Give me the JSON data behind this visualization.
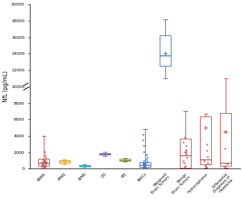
{
  "boxes": [
    {
      "name": "RRMS",
      "color": "#c0504d",
      "whisker_low": 50,
      "q1": 380,
      "median": 750,
      "q3": 1250,
      "whisker_high": 4000,
      "mean": 900,
      "scatter": [
        120,
        180,
        220,
        280,
        320,
        380,
        420,
        480,
        530,
        580,
        640,
        700,
        760,
        820,
        880,
        950,
        1050,
        1150,
        1350,
        1600,
        2100
      ]
    },
    {
      "name": "PPMS",
      "color": "#e6a118",
      "whisker_low": 550,
      "q1": 750,
      "median": 900,
      "q3": 1050,
      "whisker_high": 1150,
      "mean": 880,
      "scatter": []
    },
    {
      "name": "SPMS",
      "color": "#31b2c4",
      "whisker_low": 200,
      "q1": 280,
      "median": 380,
      "q3": 440,
      "whisker_high": 520,
      "mean": 370,
      "scatter": []
    },
    {
      "name": "CIS",
      "color": "#8064a2",
      "whisker_low": 1550,
      "q1": 1680,
      "median": 1800,
      "q3": 1920,
      "whisker_high": 2050,
      "mean": 1800,
      "scatter": []
    },
    {
      "name": "RIS",
      "color": "#77933c",
      "whisker_low": 850,
      "q1": 980,
      "median": 1080,
      "q3": 1180,
      "whisker_high": 1280,
      "mean": 1080,
      "scatter": []
    },
    {
      "name": "INDCs",
      "color": "#4472c4",
      "whisker_low": 50,
      "q1": 200,
      "median": 450,
      "q3": 800,
      "whisker_high": 4800,
      "mean": 600,
      "scatter": [
        80,
        130,
        180,
        250,
        320,
        400,
        480,
        560,
        640,
        720,
        850,
        980,
        1100,
        1350,
        1700,
        2100,
        2800,
        3500,
        4200
      ]
    },
    {
      "name": "Malignant\nBrain Tumors",
      "color": "#4472c4",
      "whisker_low": 11000,
      "q1": 12500,
      "median": 13800,
      "q3": 16200,
      "whisker_high": 18200,
      "mean": 14000,
      "scatter": []
    },
    {
      "name": "Benign\nBrain Tumors",
      "color": "#c0504d",
      "whisker_low": 80,
      "q1": 150,
      "median": 1600,
      "q3": 3700,
      "whisker_high": 7000,
      "mean": 2100,
      "scatter": [
        200,
        400,
        700,
        1000,
        1400,
        1800,
        2300,
        2800,
        3200,
        3800
      ]
    },
    {
      "name": "Hydrocephalus",
      "color": "#c0504d",
      "whisker_low": 80,
      "q1": 500,
      "median": 1100,
      "q3": 6400,
      "whisker_high": 6700,
      "mean": 5000,
      "scatter": [
        200,
        400,
        700,
        1000,
        1500,
        2200,
        3000
      ]
    },
    {
      "name": "Differential\nDiagnosis of\nHeadache",
      "color": "#c0504d",
      "whisker_low": 80,
      "q1": 400,
      "median": 700,
      "q3": 6800,
      "whisker_high": 11000,
      "mean": 4500,
      "scatter": [
        250,
        600,
        2500,
        4500
      ]
    }
  ],
  "ylabel": "NfL (pg/mL)",
  "ylim": [
    0,
    20000
  ],
  "yticks": [
    0,
    2000,
    4000,
    6000,
    8000,
    10000,
    12000,
    14000,
    16000,
    18000,
    20000
  ],
  "background_color": "#ffffff",
  "box_width": 0.55
}
